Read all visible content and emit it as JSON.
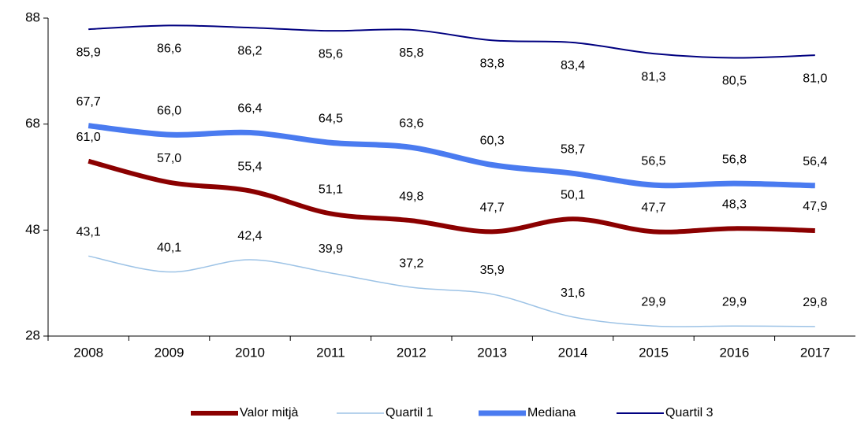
{
  "chart_data": {
    "type": "line",
    "categories": [
      "2008",
      "2009",
      "2010",
      "2011",
      "2012",
      "2013",
      "2014",
      "2015",
      "2016",
      "2017"
    ],
    "series": [
      {
        "name": "Valor mitjà",
        "color": "#8b0000",
        "values": [
          61.0,
          57.0,
          55.4,
          51.1,
          49.8,
          47.7,
          50.1,
          47.7,
          48.3,
          47.9
        ],
        "value_labels": [
          "61,0",
          "57,0",
          "55,4",
          "51,1",
          "49,8",
          "47,7",
          "50,1",
          "47,7",
          "48,3",
          "47,9"
        ]
      },
      {
        "name": "Quartil 1",
        "color": "#9dc3e6",
        "values": [
          43.1,
          40.1,
          42.4,
          39.9,
          37.2,
          35.9,
          31.6,
          29.9,
          29.9,
          29.8
        ],
        "value_labels": [
          "43,1",
          "40,1",
          "42,4",
          "39,9",
          "37,2",
          "35,9",
          "31,6",
          "29,9",
          "29,9",
          "29,8"
        ]
      },
      {
        "name": "Mediana",
        "color": "#4a7bf0",
        "values": [
          67.7,
          66.0,
          66.4,
          64.5,
          63.6,
          60.3,
          58.7,
          56.5,
          56.8,
          56.4
        ],
        "value_labels": [
          "67,7",
          "66,0",
          "66,4",
          "64,5",
          "63,6",
          "60,3",
          "58,7",
          "56,5",
          "56,8",
          "56,4"
        ]
      },
      {
        "name": "Quartil 3",
        "color": "#000080",
        "values": [
          85.9,
          86.6,
          86.2,
          85.6,
          85.8,
          83.8,
          83.4,
          81.3,
          80.5,
          81.0
        ],
        "value_labels": [
          "85,9",
          "86,6",
          "86,2",
          "85,6",
          "85,8",
          "83,8",
          "83,4",
          "81,3",
          "80,5",
          "81,0"
        ]
      }
    ],
    "ylim": [
      28,
      88
    ],
    "yticks": [
      28,
      48,
      68,
      88
    ],
    "grid": false,
    "legend": "bottom"
  }
}
